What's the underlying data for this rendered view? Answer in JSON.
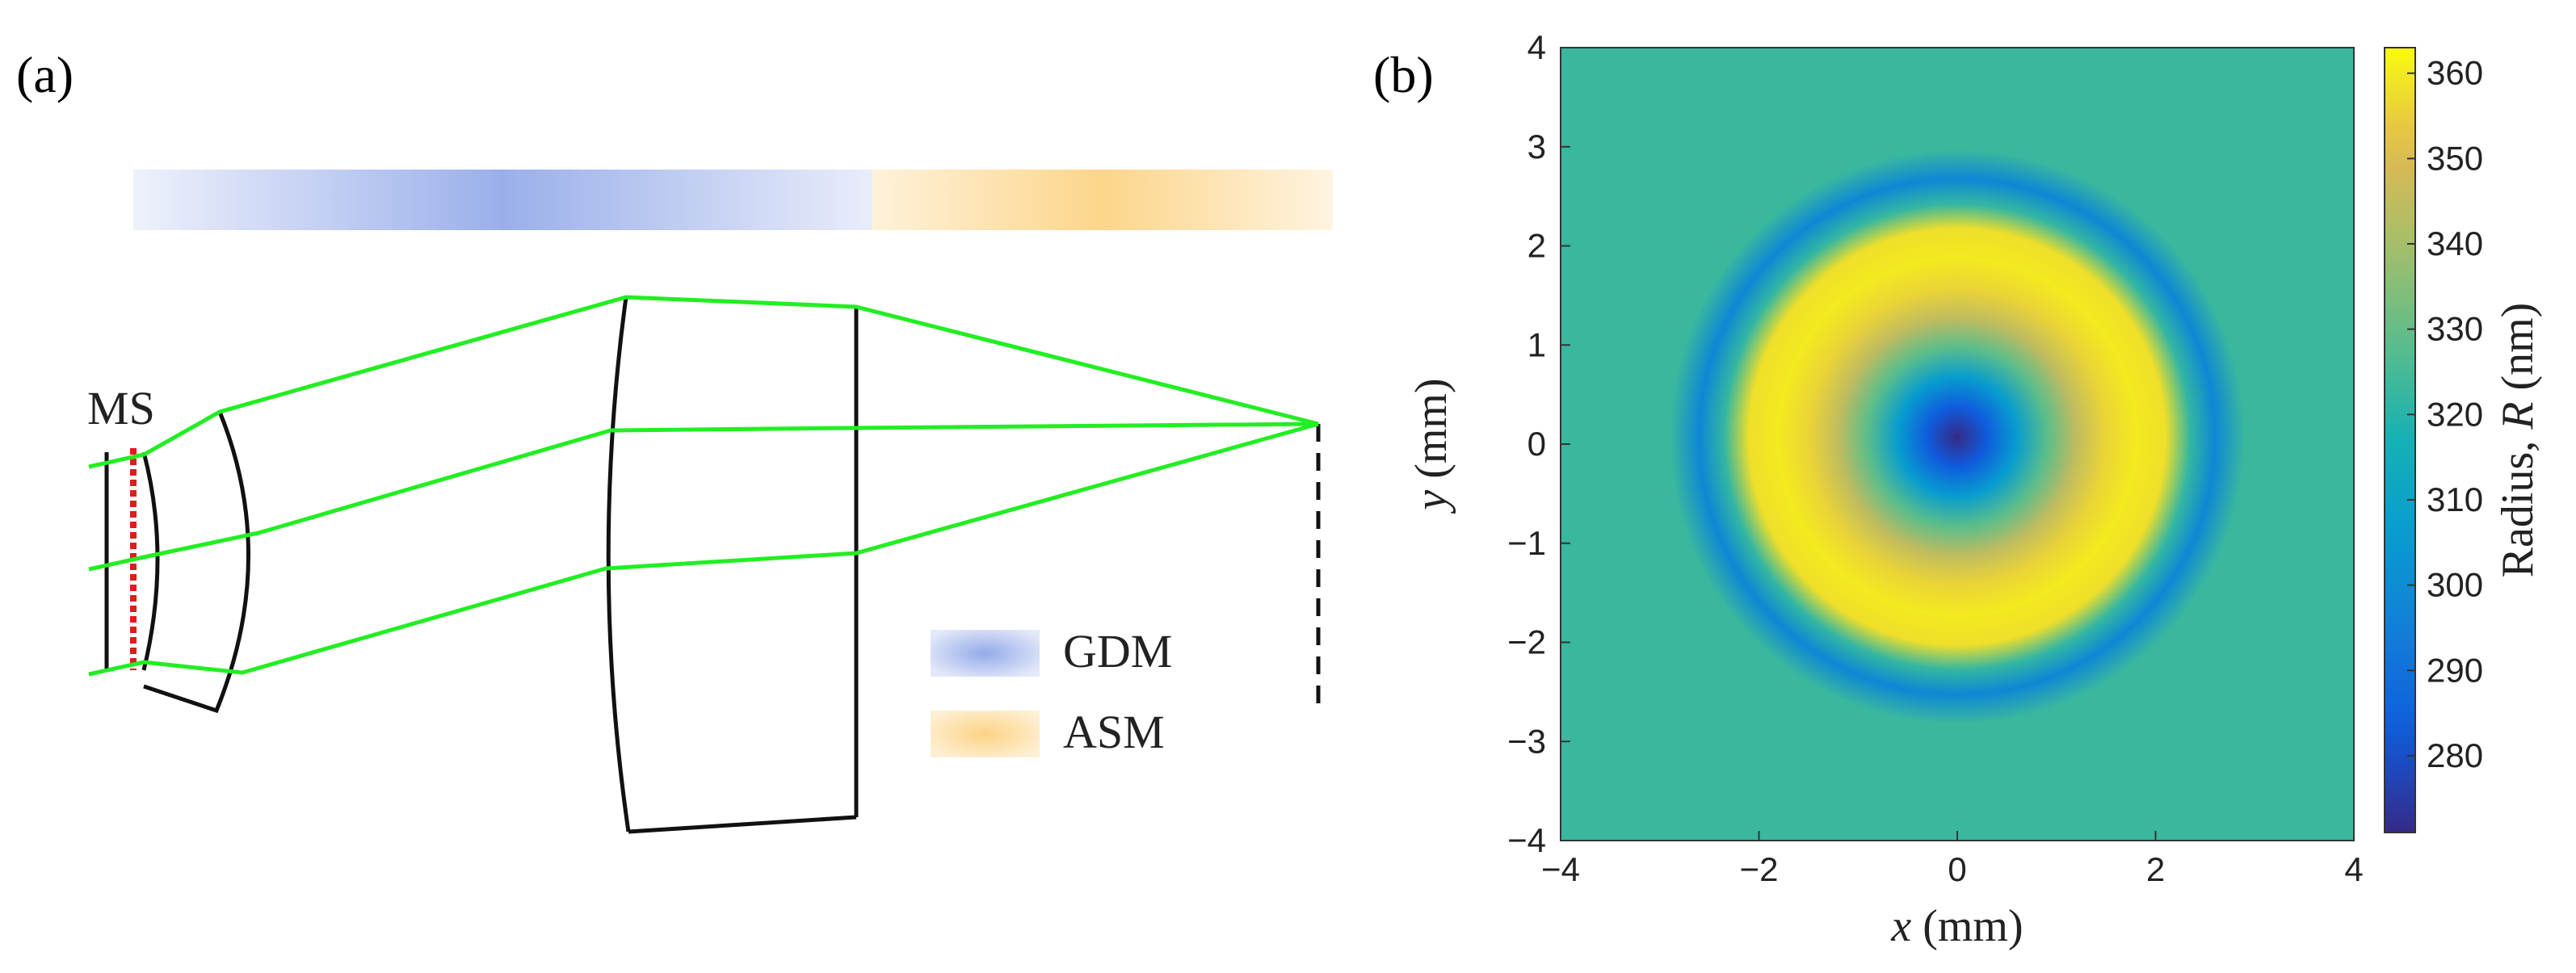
{
  "panels": {
    "a": {
      "label": "(a)",
      "ms_label": "MS",
      "legend": [
        {
          "name": "GDM",
          "color": "#8fa6e8"
        },
        {
          "name": "ASM",
          "color": "#fcd384"
        }
      ]
    },
    "b": {
      "label": "(b)"
    }
  },
  "colors": {
    "ray": "#22ee22",
    "lens": "#111111",
    "metasurface": "#e21b1b",
    "gdm": "#8fa6e8",
    "asm": "#fcd384"
  },
  "chart_data": {
    "type": "heatmap",
    "title": "",
    "xlabel": "x (mm)",
    "ylabel": "y (mm)",
    "xlabel_var": "x",
    "xlabel_unit": " (mm)",
    "ylabel_var": "y",
    "ylabel_unit": " (mm)",
    "xlim": [
      -4,
      4
    ],
    "ylim": [
      -4,
      4
    ],
    "xticks": [
      -4,
      -2,
      0,
      2,
      4
    ],
    "yticks": [
      -4,
      -3,
      -2,
      -1,
      0,
      1,
      2,
      3,
      4
    ],
    "xtick_labels": [
      "−4",
      "−2",
      "0",
      "2",
      "4"
    ],
    "ytick_labels": [
      "−4",
      "−3",
      "−2",
      "−1",
      "0",
      "1",
      "2",
      "3",
      "4"
    ],
    "colorbar": {
      "label": "Radius, R (nm)",
      "label_prefix": "Radius, ",
      "label_var": "R",
      "label_unit": " (nm)",
      "range": [
        271,
        363
      ],
      "ticks": [
        280,
        290,
        300,
        310,
        320,
        330,
        340,
        350,
        360
      ]
    },
    "radial_profile": {
      "r_mm": [
        0,
        0.3,
        0.6,
        0.9,
        1.2,
        1.5,
        1.8,
        2.1,
        2.35,
        2.6,
        2.9,
        4.0
      ],
      "radius_nm": [
        271,
        283,
        306,
        328,
        345,
        356,
        360,
        358,
        322,
        298,
        323,
        323
      ]
    },
    "background_radius_nm": 323
  }
}
